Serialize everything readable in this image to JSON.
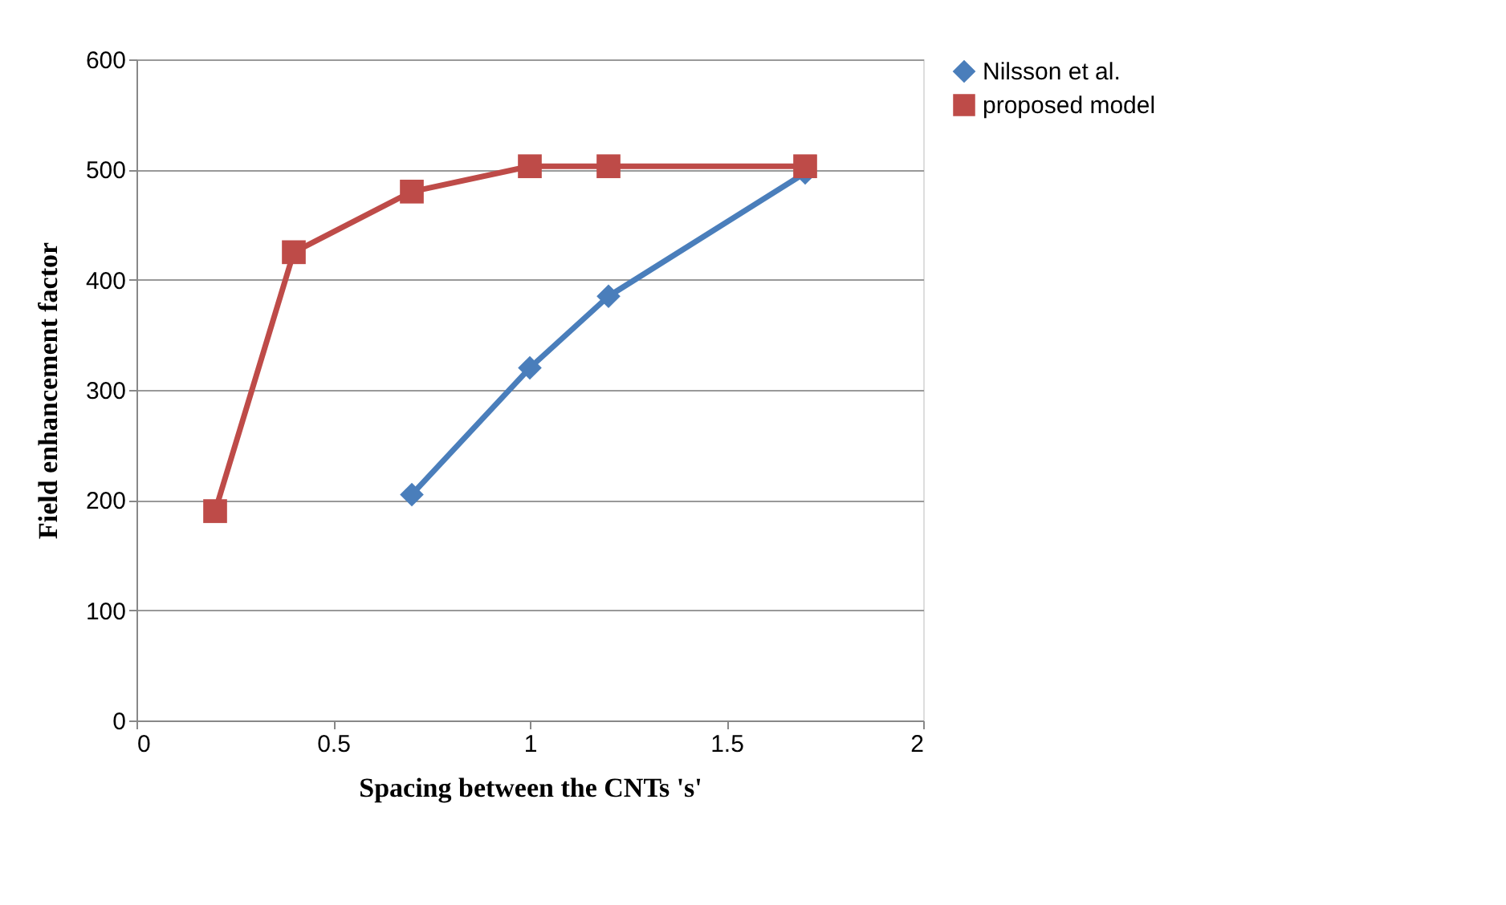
{
  "chart_data": {
    "type": "line",
    "xlabel": "Spacing between the CNTs 's'",
    "ylabel": "Field enhancement factor",
    "xlim": [
      0,
      2
    ],
    "xticks": [
      0,
      0.5,
      1,
      1.5,
      2
    ],
    "ylim": [
      0,
      600
    ],
    "yticks": [
      0,
      100,
      200,
      300,
      400,
      500,
      600
    ],
    "grid": "y",
    "legend": "right",
    "line_style": "solid",
    "series": [
      {
        "name": "Nilsson et al.",
        "color": "#4a7ebb",
        "marker": "diamond",
        "x": [
          0.7,
          1,
          1.2,
          1.7
        ],
        "values": [
          205,
          320,
          385,
          497
        ]
      },
      {
        "name": "proposed model",
        "color": "#be4b48",
        "marker": "square",
        "x": [
          0.2,
          0.4,
          0.7,
          1,
          1.2,
          1.7
        ],
        "values": [
          190,
          425,
          480,
          503,
          503,
          503
        ]
      }
    ]
  }
}
